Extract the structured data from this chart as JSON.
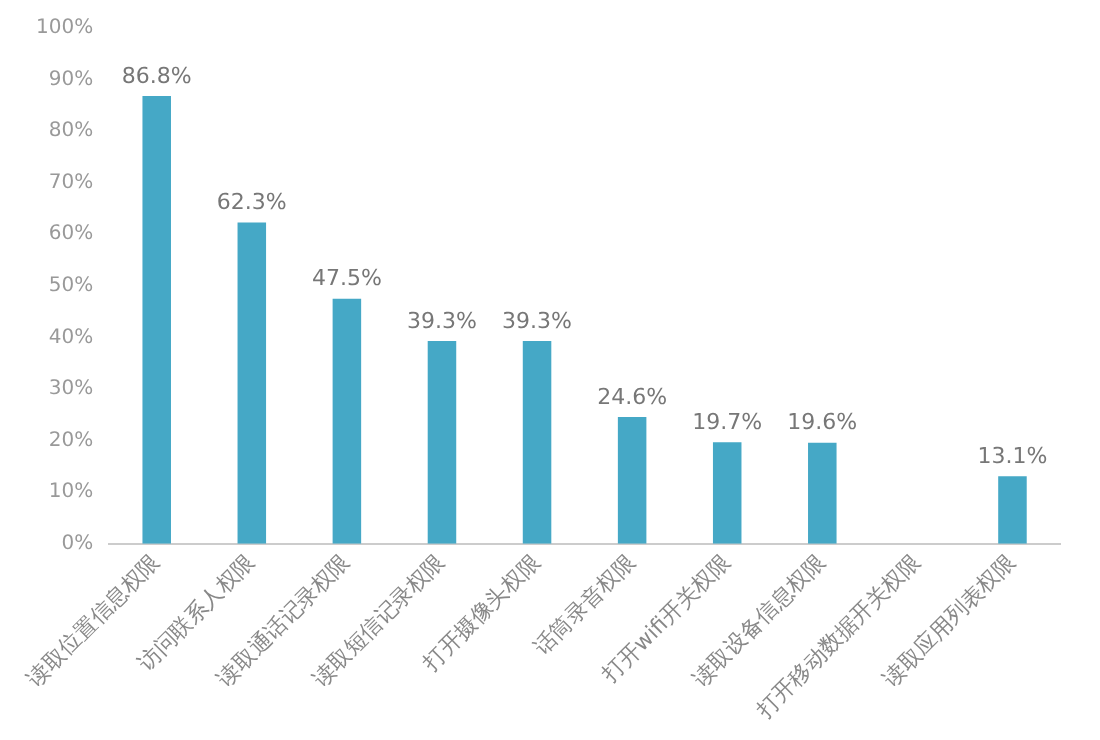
{
  "chart_data": {
    "type": "bar",
    "categories": [
      "读取位置信息权限",
      "访问联系人权限",
      "读取通话记录权限",
      "读取短信记录权限",
      "打开摄像头权限",
      "话筒录音权限",
      "打开wifi开关权限",
      "读取设备信息权限",
      "打开移动数据开关权限",
      "读取应用列表权限"
    ],
    "values": [
      86.8,
      62.3,
      47.5,
      39.3,
      39.3,
      24.6,
      19.7,
      19.6,
      null,
      13.1
    ],
    "color": "#45a8c6",
    "ylim": [
      0,
      100
    ],
    "yticks": [
      {
        "value": 0,
        "label": "0%"
      },
      {
        "value": 10,
        "label": "10%"
      },
      {
        "value": 20,
        "label": "20%"
      },
      {
        "value": 30,
        "label": "30%"
      },
      {
        "value": 40,
        "label": "40%"
      },
      {
        "value": 50,
        "label": "50%"
      },
      {
        "value": 60,
        "label": "60%"
      },
      {
        "value": 70,
        "label": "70%"
      },
      {
        "value": 80,
        "label": "80%"
      },
      {
        "value": 90,
        "label": "90%"
      },
      {
        "value": 100,
        "label": "100%"
      }
    ],
    "value_labels": [
      "86.8%",
      "62.3%",
      "47.5%",
      "39.3%",
      "39.3%",
      "24.6%",
      "19.7%",
      "19.6%",
      null,
      "13.1%"
    ],
    "grid": false
  }
}
